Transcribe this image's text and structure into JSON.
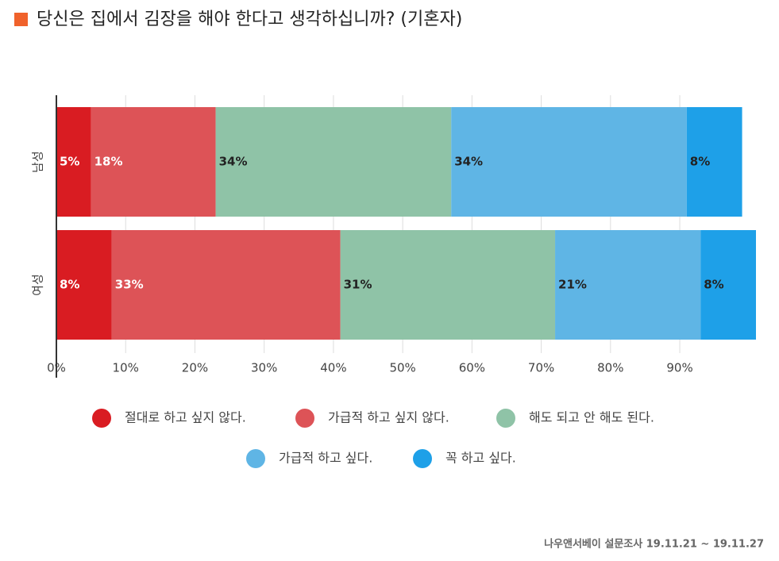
{
  "chart_data": {
    "type": "stacked-bar-horizontal",
    "title": "당신은 집에서 김장을 해야 한다고 생각하십니까? (기혼자)",
    "categories": [
      "남성",
      "여성"
    ],
    "series": [
      {
        "name": "절대로 하고 싶지 않다.",
        "color": "#d91c22",
        "values": [
          5,
          8
        ],
        "value_labels": [
          "5%",
          "8%"
        ]
      },
      {
        "name": "가급적 하고 싶지 않다.",
        "color": "#dd5357",
        "values": [
          18,
          33
        ],
        "value_labels": [
          "18%",
          "33%"
        ]
      },
      {
        "name": "해도 되고 안 해도 된다.",
        "color": "#8fc3a7",
        "values": [
          34,
          31
        ],
        "value_labels": [
          "34%",
          "31%"
        ]
      },
      {
        "name": "가급적 하고 싶다.",
        "color": "#5fb5e5",
        "values": [
          34,
          21
        ],
        "value_labels": [
          "34%",
          "21%"
        ]
      },
      {
        "name": "꼭 하고 싶다.",
        "color": "#1ea0e8",
        "values": [
          8,
          8
        ],
        "value_labels": [
          "8%",
          "8%"
        ]
      }
    ],
    "xlim": [
      0,
      101
    ],
    "xticks": [
      {
        "value": 0,
        "label": "0%"
      },
      {
        "value": 10,
        "label": "10%"
      },
      {
        "value": 20,
        "label": "20%"
      },
      {
        "value": 30,
        "label": "30%"
      },
      {
        "value": 40,
        "label": "40%"
      },
      {
        "value": 50,
        "label": "50%"
      },
      {
        "value": 60,
        "label": "60%"
      },
      {
        "value": 70,
        "label": "70%"
      },
      {
        "value": 80,
        "label": "80%"
      },
      {
        "value": 90,
        "label": "90%"
      }
    ],
    "grid": true,
    "source": "나우앤서베이 설문조사 19.11.21 ~ 19.11.27"
  }
}
